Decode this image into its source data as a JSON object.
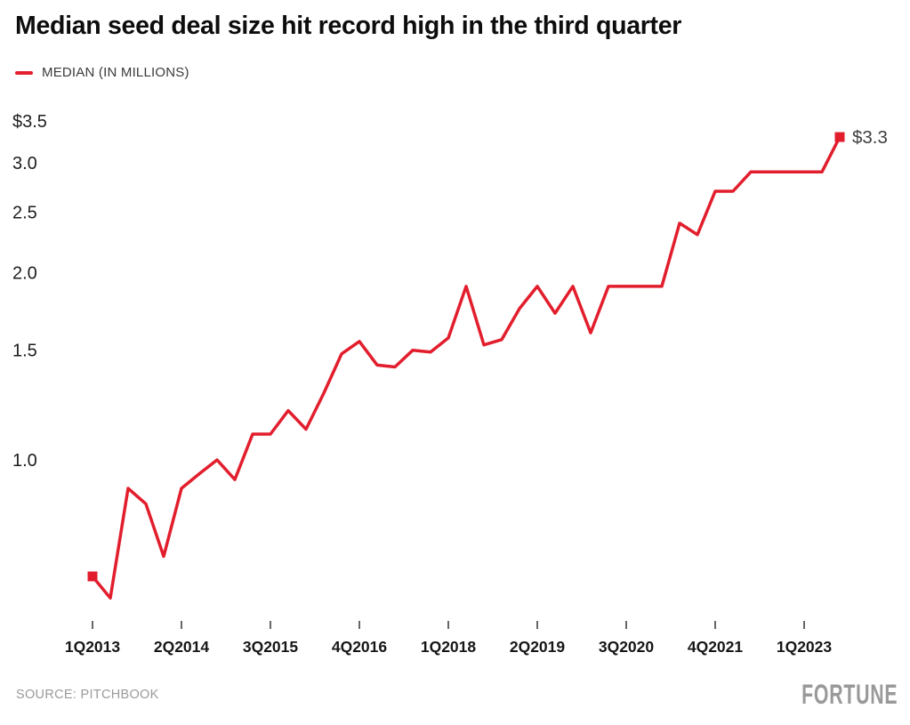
{
  "header": {
    "title": "Median seed deal size hit record high in the third quarter"
  },
  "legend": {
    "label": "MEDIAN (IN MILLIONS)"
  },
  "chart_data": {
    "type": "line",
    "title": "Median seed deal size hit record high in the third quarter",
    "series_name": "MEDIAN (IN MILLIONS)",
    "series_color": "#e21e2d",
    "categories": [
      "1Q2013",
      "2Q2013",
      "3Q2013",
      "4Q2013",
      "1Q2014",
      "2Q2014",
      "3Q2014",
      "4Q2014",
      "1Q2015",
      "2Q2015",
      "3Q2015",
      "4Q2015",
      "1Q2016",
      "2Q2016",
      "3Q2016",
      "4Q2016",
      "1Q2017",
      "2Q2017",
      "3Q2017",
      "4Q2017",
      "1Q2018",
      "2Q2018",
      "3Q2018",
      "4Q2018",
      "1Q2019",
      "2Q2019",
      "3Q2019",
      "4Q2019",
      "1Q2020",
      "2Q2020",
      "3Q2020",
      "4Q2020",
      "1Q2021",
      "2Q2021",
      "3Q2021",
      "4Q2021",
      "1Q2022",
      "2Q2022",
      "3Q2022",
      "4Q2022",
      "1Q2023",
      "2Q2023",
      "3Q2023"
    ],
    "values": [
      0.65,
      0.6,
      0.9,
      0.85,
      0.7,
      0.9,
      0.95,
      1.0,
      0.93,
      1.1,
      1.1,
      1.2,
      1.12,
      1.28,
      1.48,
      1.55,
      1.42,
      1.41,
      1.5,
      1.49,
      1.57,
      1.9,
      1.53,
      1.56,
      1.75,
      1.9,
      1.72,
      1.9,
      1.6,
      1.9,
      1.9,
      1.9,
      1.9,
      2.4,
      2.3,
      2.7,
      2.7,
      2.9,
      2.9,
      2.9,
      2.9,
      2.9,
      3.3
    ],
    "end_label": "$3.3",
    "start_marker": "square",
    "end_marker": "square",
    "y_axis": {
      "scale": "log",
      "ticks": [
        {
          "value": 3.5,
          "label": "$3.5"
        },
        {
          "value": 3.0,
          "label": "3.0"
        },
        {
          "value": 2.5,
          "label": "2.5"
        },
        {
          "value": 2.0,
          "label": "2.0"
        },
        {
          "value": 1.5,
          "label": "1.5"
        },
        {
          "value": 1.0,
          "label": "1.0"
        }
      ],
      "ylim": [
        0.55,
        3.6
      ]
    },
    "x_axis": {
      "ticks": [
        {
          "index": 0,
          "label": "1Q2013"
        },
        {
          "index": 5,
          "label": "2Q2014"
        },
        {
          "index": 10,
          "label": "3Q2015"
        },
        {
          "index": 15,
          "label": "4Q2016"
        },
        {
          "index": 20,
          "label": "1Q2018"
        },
        {
          "index": 25,
          "label": "2Q2019"
        },
        {
          "index": 30,
          "label": "3Q2020"
        },
        {
          "index": 35,
          "label": "4Q2021"
        },
        {
          "index": 40,
          "label": "1Q2023"
        }
      ]
    },
    "grid": "none",
    "legend_position": "top-left"
  },
  "footer": {
    "source": "SOURCE: PITCHBOOK",
    "brand": "FORTUNE"
  },
  "colors": {
    "accent_red": "#e21e2d",
    "text_dark": "#161616",
    "text_gray": "#9a9a9a"
  }
}
